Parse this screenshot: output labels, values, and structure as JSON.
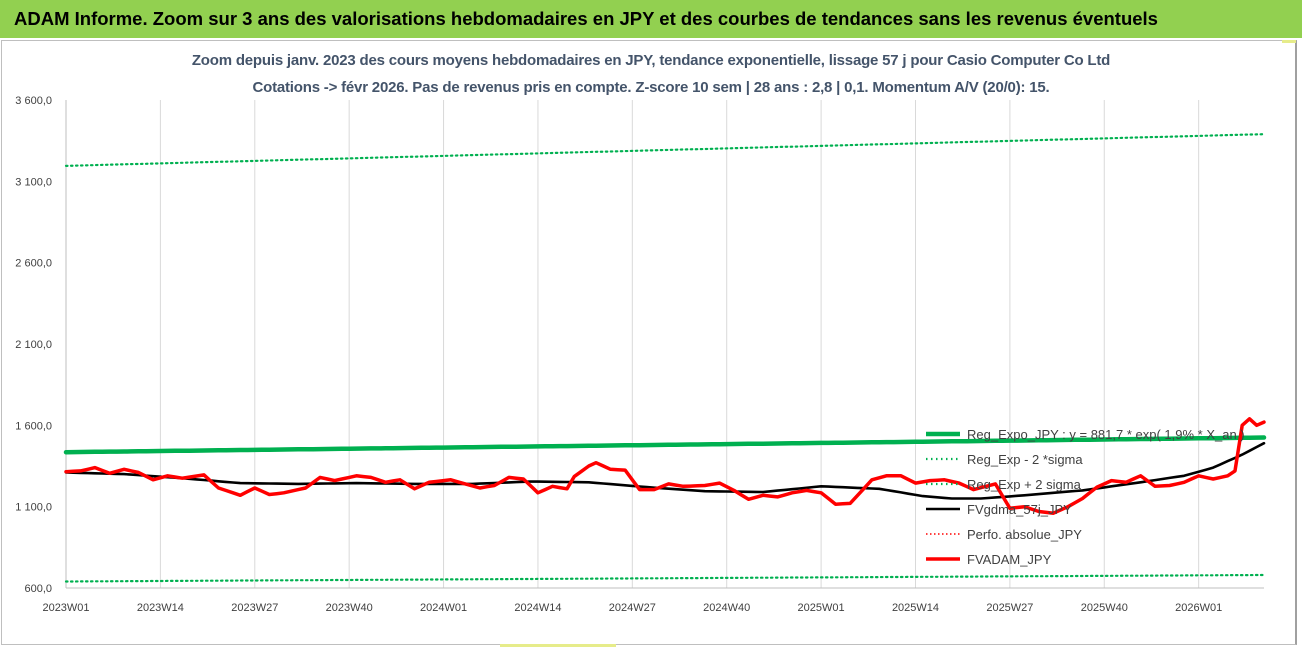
{
  "banner": {
    "title": "ADAM Informe. Zoom sur 3 ans des valorisations hebdomadaires en JPY et des courbes de tendances sans les revenus éventuels"
  },
  "chart_data": {
    "type": "line",
    "title_line1": "Zoom depuis janv. 2023 des cours moyens hebdomadaires en JPY, tendance exponentielle, lissage 57 j pour Casio Computer Co Ltd",
    "title_line2": "Cotations -> févr 2026. Pas de revenus pris en compte. Z-score 10 sem | 28 ans : 2,8 | 0,1. Momentum A/V (20/0): 15.",
    "ylim": [
      600,
      3600
    ],
    "y_ticks": [
      "600,0",
      "1 100,0",
      "1 600,0",
      "2 100,0",
      "2 600,0",
      "3 100,0",
      "3 600,0"
    ],
    "y_tick_values": [
      600,
      1100,
      1600,
      2100,
      2600,
      3100,
      3600
    ],
    "x_ticks": [
      "2023W01",
      "2023W14",
      "2023W27",
      "2023W40",
      "2024W01",
      "2024W14",
      "2024W27",
      "2024W40",
      "2025W01",
      "2025W14",
      "2025W27",
      "2025W40",
      "2026W01"
    ],
    "x_tick_index": [
      0,
      13,
      26,
      39,
      52,
      65,
      78,
      91,
      104,
      117,
      130,
      143,
      156
    ],
    "n_weeks": 166,
    "grid": "vertical",
    "legend_position": "right",
    "colors": {
      "reg": "#00b050",
      "sigma": "#00b050",
      "smooth": "#000000",
      "perfo": "#ff0000",
      "fvadam": "#ff0000",
      "title": "#44546a",
      "banner": "#92d050"
    },
    "series": [
      {
        "name": "Reg_Expo_JPY : y = 881,7 * exp( 1,9% *  X_an )",
        "style": "solid-thick",
        "knots": [
          [
            0,
            1435
          ],
          [
            165,
            1525
          ]
        ]
      },
      {
        "name": "Reg_Exp - 2 *sigma",
        "style": "dotted",
        "knots": [
          [
            0,
            640
          ],
          [
            165,
            680
          ]
        ]
      },
      {
        "name": "Reg_Exp + 2 sigma",
        "style": "dotted",
        "knots": [
          [
            0,
            3195
          ],
          [
            165,
            3390
          ]
        ]
      },
      {
        "name": "FVgdma_57j_JPY",
        "style": "solid",
        "knots": [
          [
            0,
            1310
          ],
          [
            8,
            1300
          ],
          [
            16,
            1275
          ],
          [
            24,
            1245
          ],
          [
            32,
            1240
          ],
          [
            40,
            1245
          ],
          [
            48,
            1240
          ],
          [
            56,
            1240
          ],
          [
            64,
            1255
          ],
          [
            72,
            1250
          ],
          [
            80,
            1220
          ],
          [
            88,
            1195
          ],
          [
            96,
            1190
          ],
          [
            104,
            1225
          ],
          [
            112,
            1210
          ],
          [
            118,
            1165
          ],
          [
            122,
            1150
          ],
          [
            126,
            1150
          ],
          [
            132,
            1170
          ],
          [
            140,
            1200
          ],
          [
            148,
            1250
          ],
          [
            154,
            1290
          ],
          [
            158,
            1340
          ],
          [
            162,
            1420
          ],
          [
            165,
            1490
          ]
        ]
      },
      {
        "name": "Perfo. absolue_JPY",
        "style": "dotted-thin",
        "knots": []
      },
      {
        "name": "FVADAM_JPY",
        "style": "solid-thick",
        "knots": [
          [
            0,
            1315
          ],
          [
            2,
            1320
          ],
          [
            4,
            1340
          ],
          [
            6,
            1305
          ],
          [
            8,
            1330
          ],
          [
            10,
            1310
          ],
          [
            12,
            1265
          ],
          [
            14,
            1290
          ],
          [
            16,
            1275
          ],
          [
            19,
            1295
          ],
          [
            21,
            1215
          ],
          [
            24,
            1170
          ],
          [
            26,
            1215
          ],
          [
            28,
            1175
          ],
          [
            30,
            1185
          ],
          [
            33,
            1215
          ],
          [
            35,
            1280
          ],
          [
            37,
            1260
          ],
          [
            40,
            1290
          ],
          [
            42,
            1280
          ],
          [
            44,
            1250
          ],
          [
            46,
            1265
          ],
          [
            48,
            1210
          ],
          [
            50,
            1250
          ],
          [
            53,
            1265
          ],
          [
            55,
            1240
          ],
          [
            57,
            1215
          ],
          [
            59,
            1230
          ],
          [
            61,
            1280
          ],
          [
            63,
            1270
          ],
          [
            65,
            1185
          ],
          [
            67,
            1225
          ],
          [
            69,
            1210
          ],
          [
            70,
            1285
          ],
          [
            72,
            1350
          ],
          [
            73,
            1370
          ],
          [
            75,
            1330
          ],
          [
            77,
            1325
          ],
          [
            79,
            1205
          ],
          [
            81,
            1205
          ],
          [
            83,
            1240
          ],
          [
            85,
            1225
          ],
          [
            88,
            1230
          ],
          [
            90,
            1245
          ],
          [
            92,
            1200
          ],
          [
            94,
            1145
          ],
          [
            96,
            1170
          ],
          [
            98,
            1160
          ],
          [
            100,
            1185
          ],
          [
            102,
            1200
          ],
          [
            104,
            1185
          ],
          [
            106,
            1115
          ],
          [
            108,
            1120
          ],
          [
            111,
            1265
          ],
          [
            113,
            1290
          ],
          [
            115,
            1290
          ],
          [
            117,
            1245
          ],
          [
            119,
            1260
          ],
          [
            121,
            1265
          ],
          [
            123,
            1245
          ],
          [
            125,
            1205
          ],
          [
            128,
            1240
          ],
          [
            130,
            1090
          ],
          [
            132,
            1100
          ],
          [
            134,
            1070
          ],
          [
            136,
            1060
          ],
          [
            138,
            1100
          ],
          [
            140,
            1150
          ],
          [
            142,
            1220
          ],
          [
            144,
            1260
          ],
          [
            146,
            1250
          ],
          [
            148,
            1290
          ],
          [
            150,
            1225
          ],
          [
            152,
            1230
          ],
          [
            154,
            1250
          ],
          [
            156,
            1290
          ],
          [
            158,
            1270
          ],
          [
            160,
            1290
          ],
          [
            161,
            1320
          ],
          [
            162,
            1600
          ],
          [
            163,
            1640
          ],
          [
            164,
            1600
          ],
          [
            165,
            1620
          ]
        ]
      }
    ]
  }
}
